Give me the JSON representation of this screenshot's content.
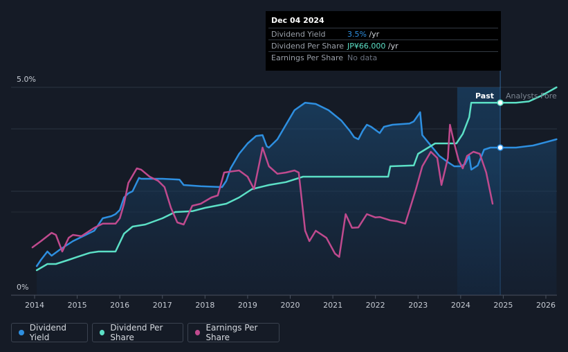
{
  "tooltip": {
    "date": "Dec 04 2024",
    "rows": [
      {
        "label": "Dividend Yield",
        "value": "3.5%",
        "unit": " /yr",
        "color": "#2e8fe0"
      },
      {
        "label": "Dividend Per Share",
        "value": "JP¥66.000",
        "unit": " /yr",
        "color": "#5ce0c6"
      },
      {
        "label": "Earnings Per Share",
        "value": "No data",
        "unit": "",
        "color": "#6b7280"
      }
    ]
  },
  "legend": [
    {
      "label": "Dividend Yield",
      "color": "#2e8fe0"
    },
    {
      "label": "Dividend Per Share",
      "color": "#5ce0c6"
    },
    {
      "label": "Earnings Per Share",
      "color": "#c04a8e"
    }
  ],
  "chart_data": {
    "type": "line",
    "title": "",
    "xlabel": "",
    "ylabel": "",
    "xlim": [
      2013.95,
      2026.25
    ],
    "ylim": [
      0,
      5.0
    ],
    "y_tick_labels": [
      "5.0%",
      "0%"
    ],
    "x_ticks": [
      2014,
      2015,
      2016,
      2017,
      2018,
      2019,
      2020,
      2021,
      2022,
      2023,
      2024,
      2025,
      2026
    ],
    "past_label": "Past",
    "forecast_label": "Analysts Forecasts",
    "past_end": 2024.93,
    "highlight_start": 2023.92,
    "series": [
      {
        "name": "Dividend Yield",
        "color": "#2e8fe0",
        "fill": true,
        "points": [
          [
            2014.05,
            0.7
          ],
          [
            2014.15,
            0.85
          ],
          [
            2014.3,
            1.05
          ],
          [
            2014.4,
            0.95
          ],
          [
            2014.6,
            1.1
          ],
          [
            2014.9,
            1.3
          ],
          [
            2015.2,
            1.45
          ],
          [
            2015.4,
            1.55
          ],
          [
            2015.5,
            1.7
          ],
          [
            2015.6,
            1.85
          ],
          [
            2015.8,
            1.9
          ],
          [
            2015.9,
            1.95
          ],
          [
            2016.0,
            2.05
          ],
          [
            2016.1,
            2.35
          ],
          [
            2016.2,
            2.45
          ],
          [
            2016.3,
            2.5
          ],
          [
            2016.45,
            2.82
          ],
          [
            2016.5,
            2.8
          ],
          [
            2017.0,
            2.8
          ],
          [
            2017.4,
            2.78
          ],
          [
            2017.5,
            2.65
          ],
          [
            2017.9,
            2.62
          ],
          [
            2018.4,
            2.6
          ],
          [
            2018.5,
            2.75
          ],
          [
            2018.6,
            3.05
          ],
          [
            2018.8,
            3.4
          ],
          [
            2019.0,
            3.65
          ],
          [
            2019.2,
            3.83
          ],
          [
            2019.35,
            3.85
          ],
          [
            2019.45,
            3.58
          ],
          [
            2019.5,
            3.55
          ],
          [
            2019.7,
            3.75
          ],
          [
            2019.9,
            4.1
          ],
          [
            2020.1,
            4.45
          ],
          [
            2020.35,
            4.63
          ],
          [
            2020.6,
            4.6
          ],
          [
            2020.9,
            4.45
          ],
          [
            2021.2,
            4.2
          ],
          [
            2021.4,
            3.95
          ],
          [
            2021.5,
            3.8
          ],
          [
            2021.6,
            3.75
          ],
          [
            2021.7,
            3.95
          ],
          [
            2021.8,
            4.1
          ],
          [
            2021.9,
            4.05
          ],
          [
            2022.1,
            3.9
          ],
          [
            2022.2,
            4.05
          ],
          [
            2022.4,
            4.1
          ],
          [
            2022.8,
            4.13
          ],
          [
            2022.9,
            4.18
          ],
          [
            2023.05,
            4.4
          ],
          [
            2023.1,
            3.85
          ],
          [
            2023.3,
            3.6
          ],
          [
            2023.5,
            3.35
          ],
          [
            2023.7,
            3.2
          ],
          [
            2023.85,
            3.1
          ],
          [
            2024.0,
            3.1
          ],
          [
            2024.1,
            3.15
          ],
          [
            2024.2,
            3.35
          ],
          [
            2024.25,
            3.02
          ],
          [
            2024.4,
            3.12
          ],
          [
            2024.55,
            3.5
          ],
          [
            2024.7,
            3.55
          ],
          [
            2024.93,
            3.55
          ],
          [
            2025.3,
            3.55
          ],
          [
            2025.7,
            3.6
          ],
          [
            2026.0,
            3.68
          ],
          [
            2026.25,
            3.75
          ]
        ]
      },
      {
        "name": "Dividend Per Share",
        "color": "#5ce0c6",
        "fill": false,
        "points": [
          [
            2014.05,
            0.6
          ],
          [
            2014.3,
            0.75
          ],
          [
            2014.5,
            0.75
          ],
          [
            2014.8,
            0.85
          ],
          [
            2015.0,
            0.92
          ],
          [
            2015.3,
            1.02
          ],
          [
            2015.5,
            1.05
          ],
          [
            2015.9,
            1.05
          ],
          [
            2016.1,
            1.48
          ],
          [
            2016.3,
            1.65
          ],
          [
            2016.6,
            1.7
          ],
          [
            2017.0,
            1.85
          ],
          [
            2017.3,
            2.0
          ],
          [
            2017.7,
            2.02
          ],
          [
            2018.0,
            2.1
          ],
          [
            2018.5,
            2.2
          ],
          [
            2018.8,
            2.35
          ],
          [
            2019.1,
            2.55
          ],
          [
            2019.5,
            2.65
          ],
          [
            2019.9,
            2.72
          ],
          [
            2020.3,
            2.85
          ],
          [
            2021.0,
            2.85
          ],
          [
            2022.3,
            2.85
          ],
          [
            2022.35,
            3.1
          ],
          [
            2022.9,
            3.12
          ],
          [
            2023.0,
            3.4
          ],
          [
            2023.4,
            3.65
          ],
          [
            2023.9,
            3.65
          ],
          [
            2024.05,
            3.88
          ],
          [
            2024.2,
            4.28
          ],
          [
            2024.25,
            4.63
          ],
          [
            2024.93,
            4.63
          ],
          [
            2025.3,
            4.63
          ],
          [
            2025.6,
            4.66
          ],
          [
            2025.9,
            4.8
          ],
          [
            2026.25,
            5.0
          ]
        ]
      },
      {
        "name": "Earnings Per Share",
        "color": "#c04a8e",
        "fill": false,
        "points": [
          [
            2013.95,
            1.15
          ],
          [
            2014.15,
            1.3
          ],
          [
            2014.4,
            1.5
          ],
          [
            2014.5,
            1.45
          ],
          [
            2014.65,
            1.05
          ],
          [
            2014.8,
            1.38
          ],
          [
            2014.9,
            1.45
          ],
          [
            2015.1,
            1.42
          ],
          [
            2015.4,
            1.62
          ],
          [
            2015.6,
            1.72
          ],
          [
            2015.9,
            1.72
          ],
          [
            2016.0,
            1.85
          ],
          [
            2016.1,
            2.2
          ],
          [
            2016.2,
            2.7
          ],
          [
            2016.4,
            3.05
          ],
          [
            2016.5,
            3.02
          ],
          [
            2016.7,
            2.85
          ],
          [
            2016.9,
            2.75
          ],
          [
            2017.05,
            2.6
          ],
          [
            2017.2,
            2.1
          ],
          [
            2017.35,
            1.75
          ],
          [
            2017.5,
            1.7
          ],
          [
            2017.7,
            2.15
          ],
          [
            2017.9,
            2.2
          ],
          [
            2018.15,
            2.35
          ],
          [
            2018.3,
            2.4
          ],
          [
            2018.45,
            2.95
          ],
          [
            2018.65,
            2.98
          ],
          [
            2018.8,
            3.0
          ],
          [
            2019.0,
            2.85
          ],
          [
            2019.15,
            2.55
          ],
          [
            2019.35,
            3.55
          ],
          [
            2019.5,
            3.1
          ],
          [
            2019.7,
            2.92
          ],
          [
            2019.9,
            2.95
          ],
          [
            2020.1,
            3.0
          ],
          [
            2020.2,
            2.95
          ],
          [
            2020.35,
            1.55
          ],
          [
            2020.45,
            1.3
          ],
          [
            2020.6,
            1.55
          ],
          [
            2020.85,
            1.38
          ],
          [
            2021.05,
            1.0
          ],
          [
            2021.15,
            0.92
          ],
          [
            2021.3,
            1.95
          ],
          [
            2021.45,
            1.62
          ],
          [
            2021.6,
            1.63
          ],
          [
            2021.8,
            1.95
          ],
          [
            2022.0,
            1.87
          ],
          [
            2022.1,
            1.88
          ],
          [
            2022.35,
            1.8
          ],
          [
            2022.5,
            1.78
          ],
          [
            2022.7,
            1.72
          ],
          [
            2022.95,
            2.55
          ],
          [
            2023.1,
            3.1
          ],
          [
            2023.3,
            3.45
          ],
          [
            2023.45,
            3.3
          ],
          [
            2023.55,
            2.65
          ],
          [
            2023.7,
            3.3
          ],
          [
            2023.75,
            4.1
          ],
          [
            2023.85,
            3.65
          ],
          [
            2023.95,
            3.25
          ],
          [
            2024.05,
            3.05
          ],
          [
            2024.15,
            3.35
          ],
          [
            2024.3,
            3.45
          ],
          [
            2024.45,
            3.4
          ],
          [
            2024.6,
            2.95
          ],
          [
            2024.75,
            2.2
          ]
        ]
      }
    ],
    "markers": [
      {
        "series": "Dividend Per Share",
        "x": 2024.93,
        "y": 4.63
      },
      {
        "series": "Dividend Yield",
        "x": 2024.93,
        "y": 3.55
      }
    ]
  }
}
